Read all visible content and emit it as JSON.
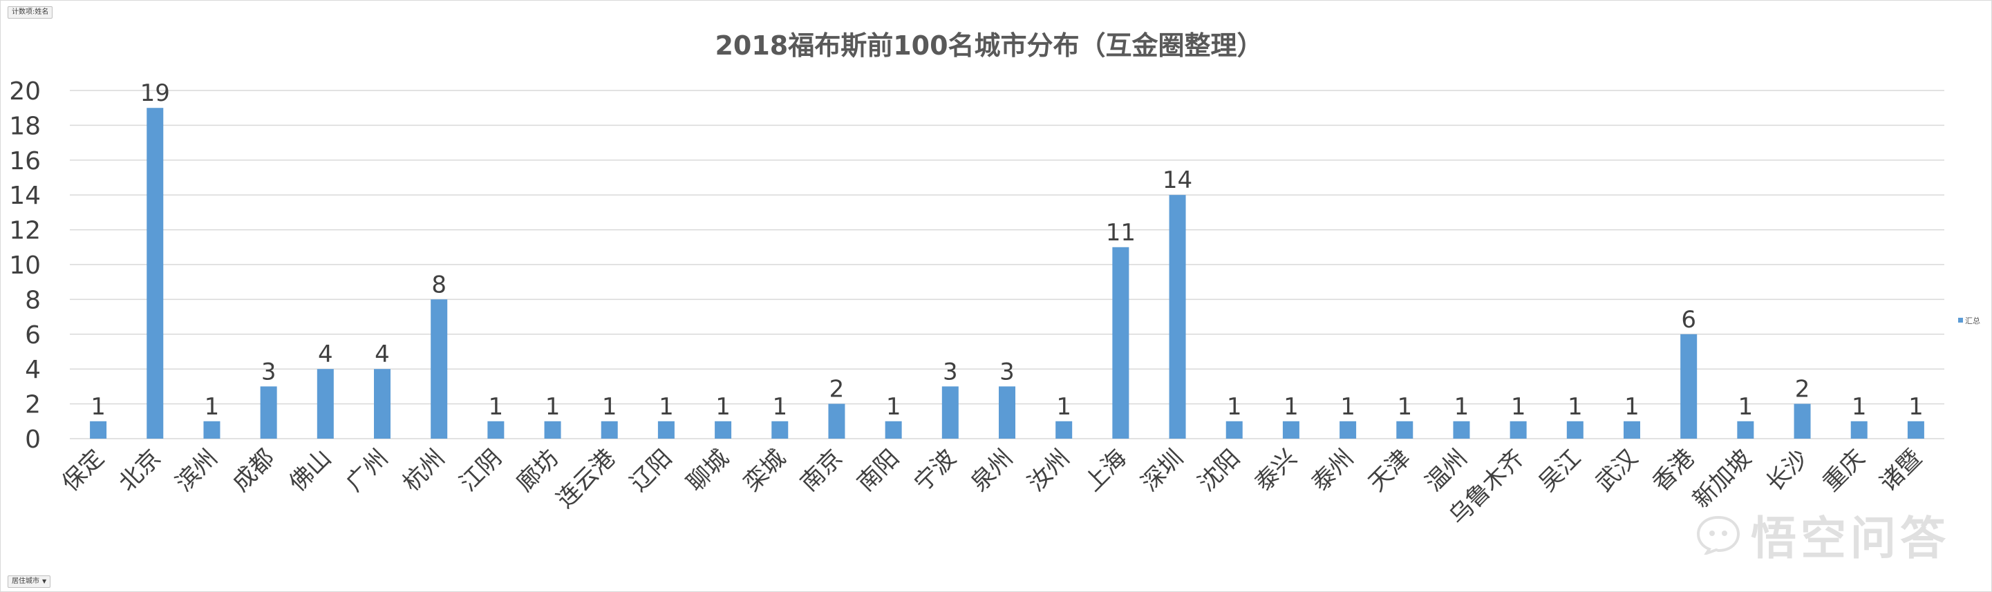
{
  "pivot": {
    "value_field": "计数项:姓名",
    "row_field": "居住城市"
  },
  "colors": {
    "bar": "#5b9bd5",
    "grid": "#d9d9d9",
    "text": "#404040"
  },
  "watermark": {
    "text": "悟空问答"
  },
  "chart_data": {
    "type": "bar",
    "title": "2018福布斯前100名城市分布（互金圈整理）",
    "xlabel": "",
    "ylabel": "",
    "ylim": [
      0,
      20
    ],
    "ytick_step": 2,
    "grid": true,
    "legend_position": "right",
    "categories": [
      "保定",
      "北京",
      "滨州",
      "成都",
      "佛山",
      "广州",
      "杭州",
      "江阴",
      "廊坊",
      "连云港",
      "辽阳",
      "聊城",
      "栾城",
      "南京",
      "南阳",
      "宁波",
      "泉州",
      "汝州",
      "上海",
      "深圳",
      "沈阳",
      "泰兴",
      "泰州",
      "天津",
      "温州",
      "乌鲁木齐",
      "吴江",
      "武汉",
      "香港",
      "新加坡",
      "长沙",
      "重庆",
      "诸暨"
    ],
    "series": [
      {
        "name": "汇总",
        "values": [
          1,
          19,
          1,
          3,
          4,
          4,
          8,
          1,
          1,
          1,
          1,
          1,
          1,
          2,
          1,
          3,
          3,
          1,
          11,
          14,
          1,
          1,
          1,
          1,
          1,
          1,
          1,
          1,
          6,
          1,
          2,
          1,
          1
        ]
      }
    ]
  }
}
